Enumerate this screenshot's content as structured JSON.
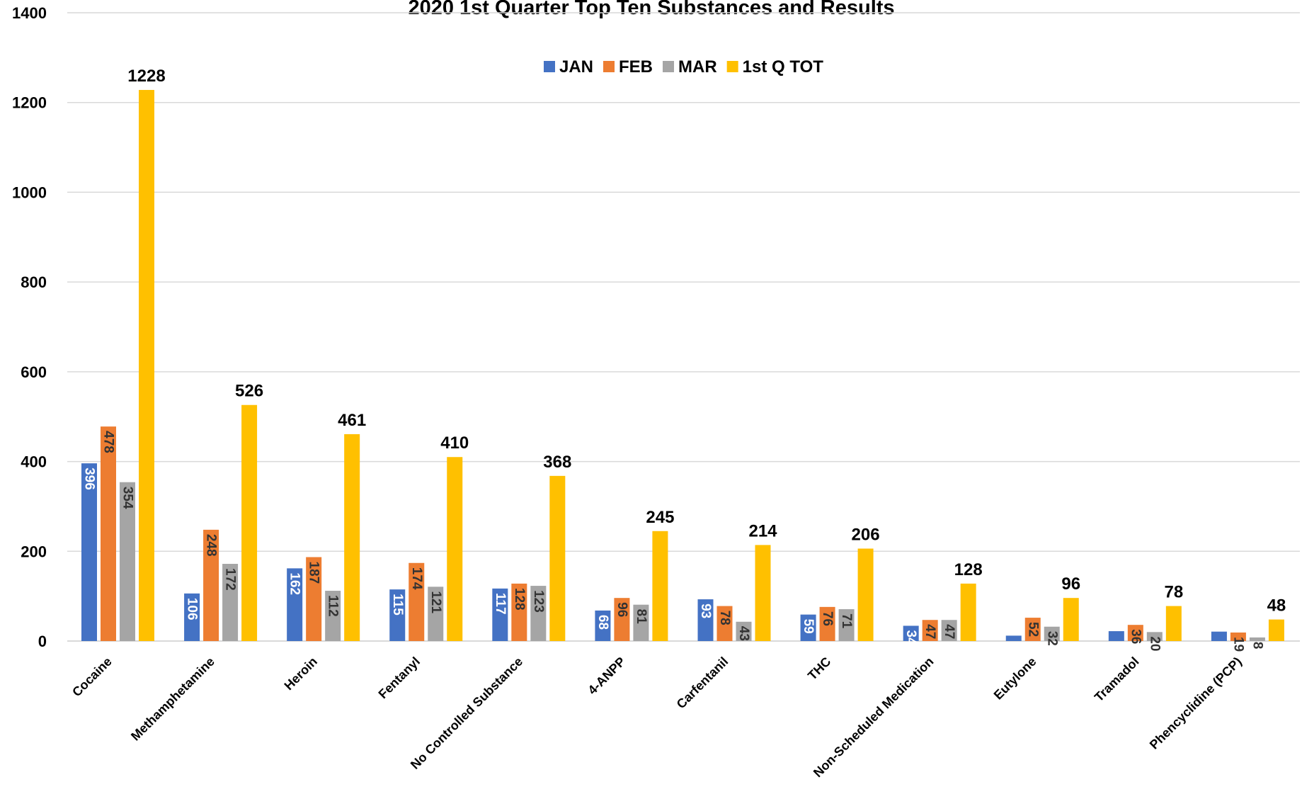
{
  "chart_data": {
    "type": "bar",
    "title": "2020 1st Quarter Top Ten Substances and Results",
    "categories": [
      "Cocaine",
      "Methamphetamine",
      "Heroin",
      "Fentanyl",
      "No Controlled Substance",
      "4-ANPP",
      "Carfentanil",
      "THC",
      "Non-Scheduled Medication",
      "Eutylone",
      "Tramadol",
      "Phencyclidine (PCP)"
    ],
    "series": [
      {
        "name": "JAN",
        "color": "#4472C4",
        "values": [
          396,
          106,
          162,
          115,
          117,
          68,
          93,
          59,
          34,
          12,
          22,
          21
        ],
        "labels": [
          "396",
          "106",
          "162",
          "115",
          "117",
          "68",
          "93",
          "59",
          "34",
          "",
          "",
          ""
        ]
      },
      {
        "name": "FEB",
        "color": "#ED7D31",
        "values": [
          478,
          248,
          187,
          174,
          128,
          96,
          78,
          76,
          47,
          52,
          36,
          19
        ],
        "labels": [
          "478",
          "248",
          "187",
          "174",
          "128",
          "96",
          "78",
          "76",
          "47",
          "52",
          "36",
          "19"
        ]
      },
      {
        "name": "MAR",
        "color": "#A5A5A5",
        "values": [
          354,
          172,
          112,
          121,
          123,
          81,
          43,
          71,
          47,
          32,
          20,
          8
        ],
        "labels": [
          "354",
          "172",
          "112",
          "121",
          "123",
          "81",
          "43",
          "71",
          "47",
          "32",
          "20",
          "8"
        ]
      },
      {
        "name": "1st Q TOT",
        "color": "#FFC000",
        "values": [
          1228,
          526,
          461,
          410,
          368,
          245,
          214,
          206,
          128,
          96,
          78,
          48
        ],
        "labels": [
          "1228",
          "526",
          "461",
          "410",
          "368",
          "245",
          "214",
          "206",
          "128",
          "96",
          "78",
          "48"
        ]
      }
    ],
    "y_ticks": [
      "0",
      "200",
      "400",
      "600",
      "800",
      "1000",
      "1200",
      "1400"
    ],
    "ylim": [
      0,
      1400
    ],
    "grid": true,
    "legend_position": "top-center"
  }
}
